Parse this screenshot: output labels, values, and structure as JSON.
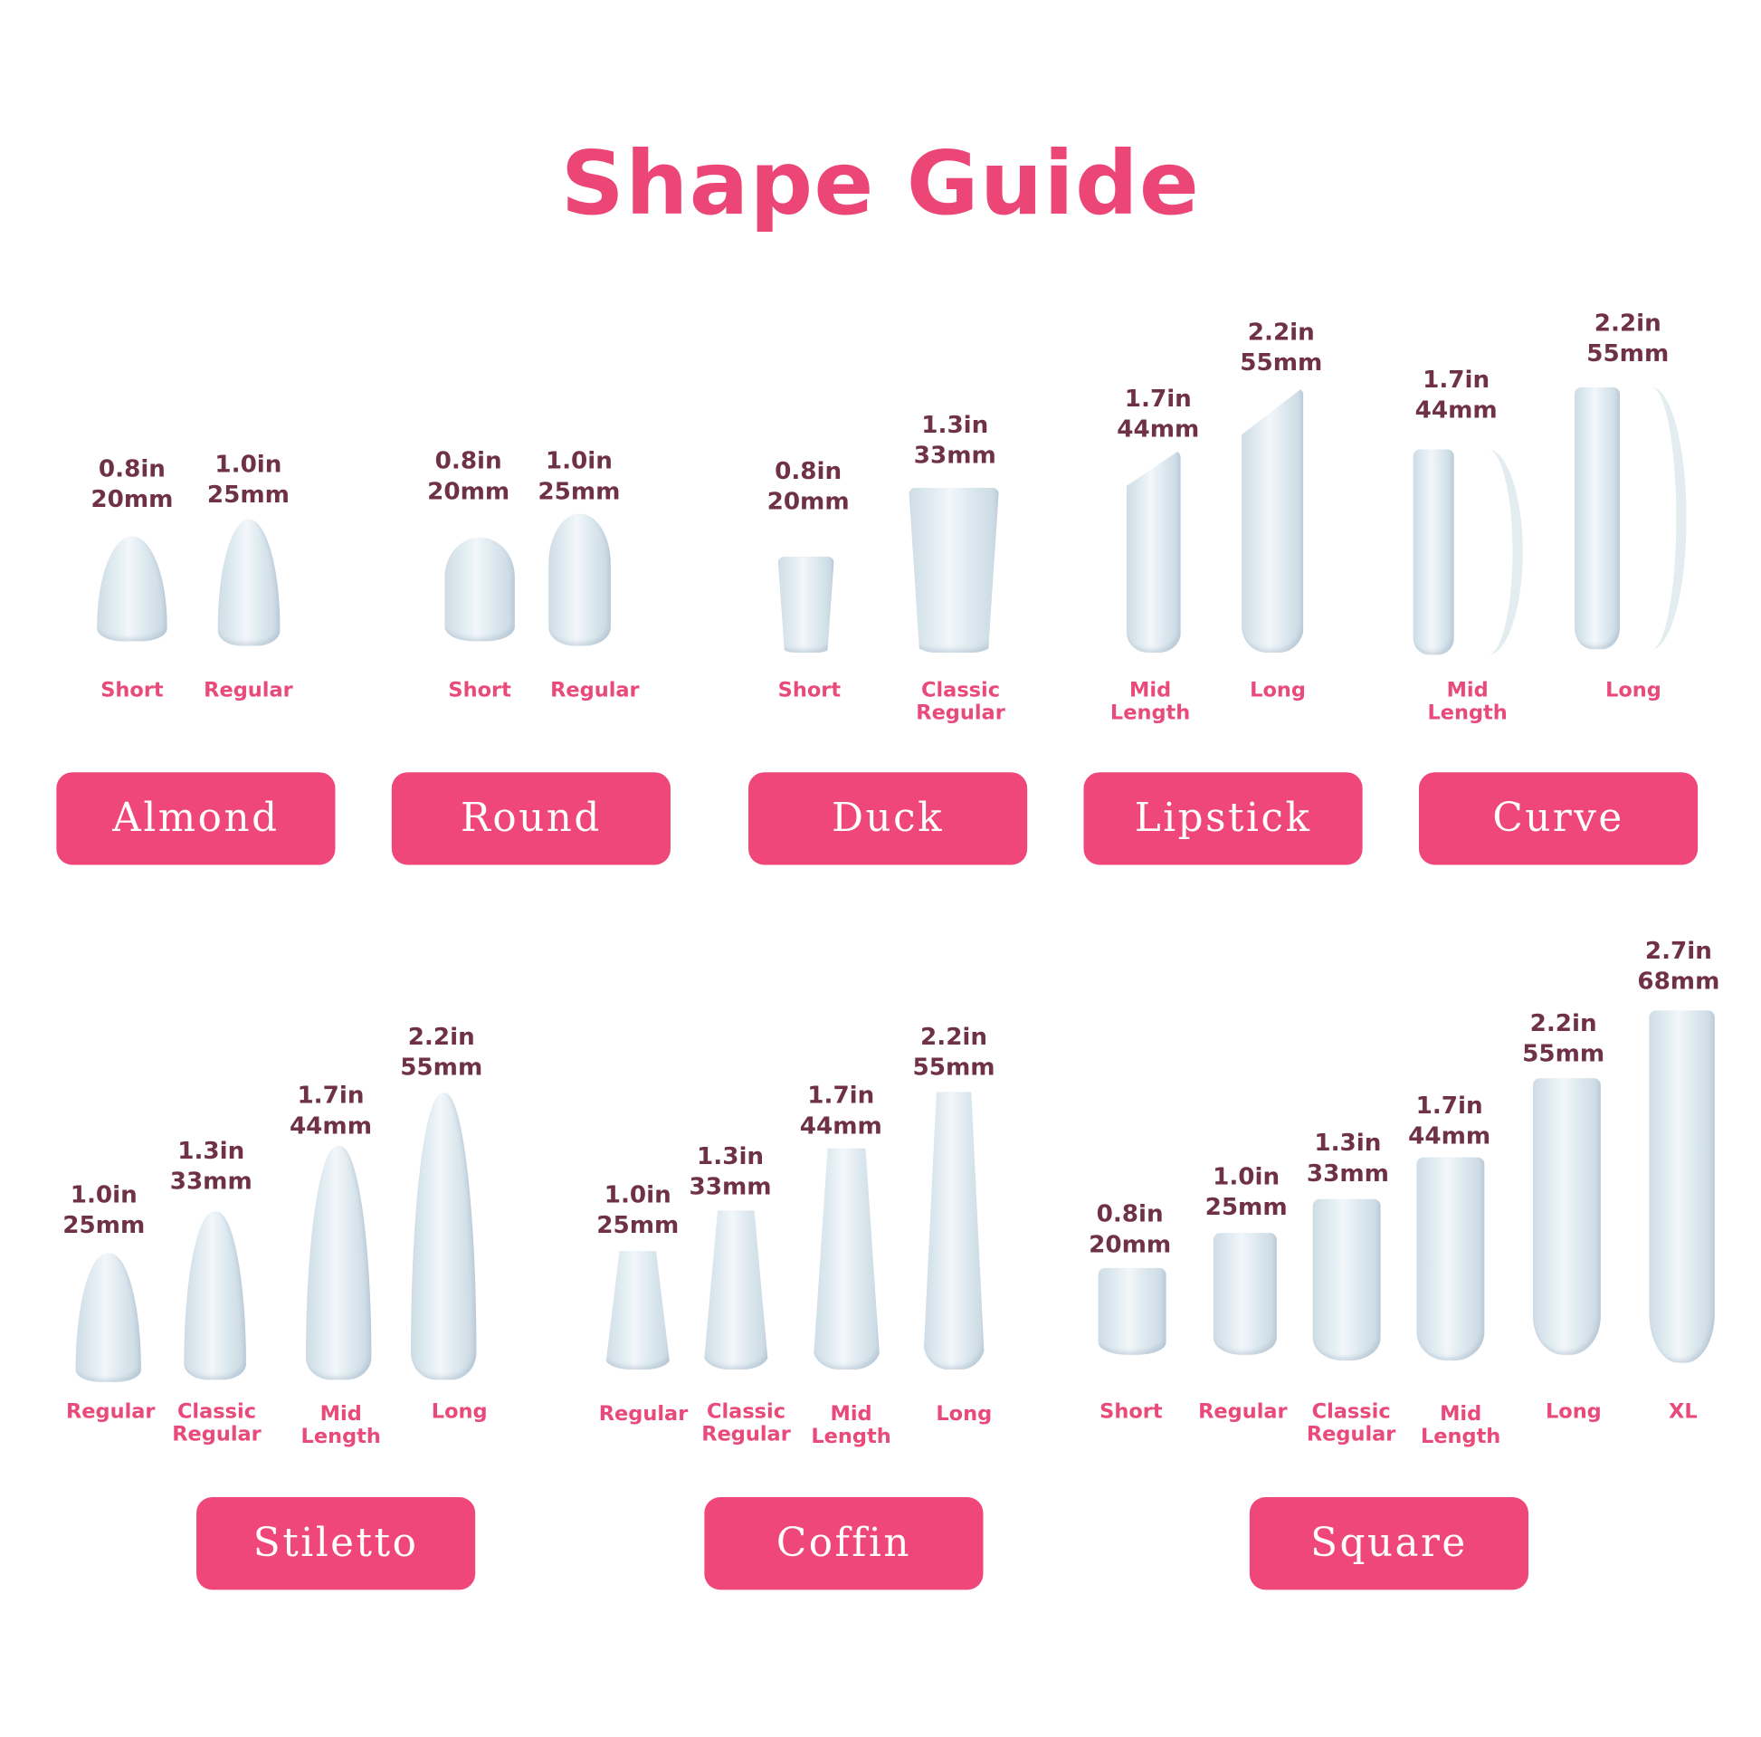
{
  "title": "Shape Guide",
  "colors": {
    "accent": "#ef4779",
    "size_text": "#6e3148",
    "label_text": "#e84a7b",
    "nail": "#dde9f0"
  },
  "shapes": [
    {
      "name": "Almond",
      "nails": [
        {
          "size": "0.8in\n20mm",
          "label": "Short"
        },
        {
          "size": "1.0in\n25mm",
          "label": "Regular"
        }
      ]
    },
    {
      "name": "Round",
      "nails": [
        {
          "size": "0.8in\n20mm",
          "label": "Short"
        },
        {
          "size": "1.0in\n25mm",
          "label": "Regular"
        }
      ]
    },
    {
      "name": "Duck",
      "nails": [
        {
          "size": "0.8in\n20mm",
          "label": "Short"
        },
        {
          "size": "1.3in\n33mm",
          "label": "Classic\nRegular"
        }
      ]
    },
    {
      "name": "Lipstick",
      "nails": [
        {
          "size": "1.7in\n44mm",
          "label": "Mid\nLength"
        },
        {
          "size": "2.2in\n55mm",
          "label": "Long"
        }
      ]
    },
    {
      "name": "Curve",
      "nails": [
        {
          "size": "1.7in\n44mm",
          "label": "Mid\nLength"
        },
        {
          "size": "2.2in\n55mm",
          "label": "Long"
        }
      ]
    },
    {
      "name": "Stiletto",
      "nails": [
        {
          "size": "1.0in\n25mm",
          "label": "Regular"
        },
        {
          "size": "1.3in\n33mm",
          "label": "Classic\nRegular"
        },
        {
          "size": "1.7in\n44mm",
          "label": "Mid\nLength"
        },
        {
          "size": "2.2in\n55mm",
          "label": "Long"
        }
      ]
    },
    {
      "name": "Coffin",
      "nails": [
        {
          "size": "1.0in\n25mm",
          "label": "Regular"
        },
        {
          "size": "1.3in\n33mm",
          "label": "Classic\nRegular"
        },
        {
          "size": "1.7in\n44mm",
          "label": "Mid\nLength"
        },
        {
          "size": "2.2in\n55mm",
          "label": "Long"
        }
      ]
    },
    {
      "name": "Square",
      "nails": [
        {
          "size": "0.8in\n20mm",
          "label": "Short"
        },
        {
          "size": "1.0in\n25mm",
          "label": "Regular"
        },
        {
          "size": "1.3in\n33mm",
          "label": "Classic\nRegular"
        },
        {
          "size": "1.7in\n44mm",
          "label": "Mid\nLength"
        },
        {
          "size": "2.2in\n55mm",
          "label": "Long"
        },
        {
          "size": "2.7in\n68mm",
          "label": "XL"
        }
      ]
    }
  ]
}
